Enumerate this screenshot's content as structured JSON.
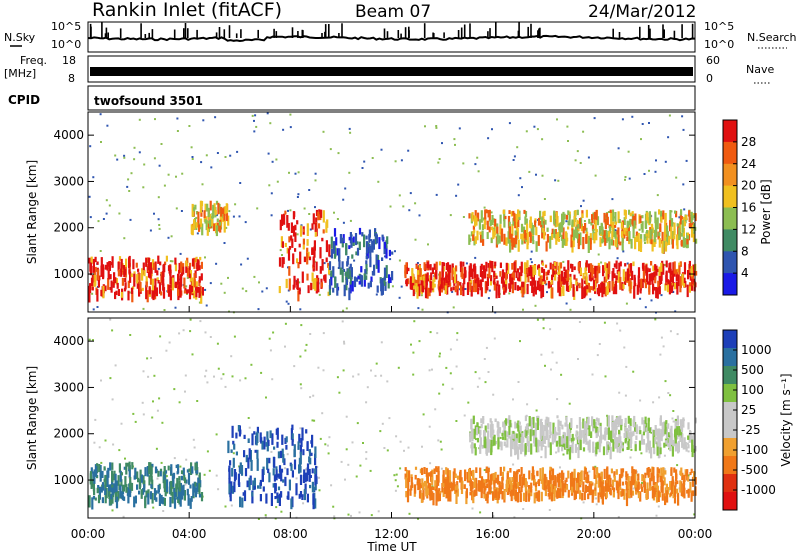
{
  "header": {
    "station": "Rankin Inlet (fitACF)",
    "beam": "Beam 07",
    "date": "24/Mar/2012"
  },
  "noise_panel": {
    "left_label": "N.Sky",
    "right_label": "N.Search",
    "left_ticks": [
      "10^5",
      "10^0"
    ],
    "right_ticks": [
      "10^5",
      "10^0"
    ]
  },
  "freq_panel": {
    "left_label_1": "Freq.",
    "left_label_2": "[MHz]",
    "right_label": "Nave",
    "left_ticks": [
      "18",
      "8"
    ],
    "right_ticks": [
      "60",
      "0"
    ]
  },
  "cpid": {
    "label": "CPID",
    "value": "twofsound 3501"
  },
  "time_axis": {
    "ticks": [
      "00:00",
      "04:00",
      "08:00",
      "12:00",
      "16:00",
      "20:00",
      "00:00"
    ],
    "label": "Time UT"
  },
  "power_panel": {
    "ylabel": "Slant Range [km]",
    "y_ticks": [
      "1000",
      "2000",
      "3000",
      "4000"
    ],
    "colorbar_label": "Power [dB]",
    "colorbar_ticks": [
      "4",
      "8",
      "12",
      "16",
      "20",
      "24",
      "28"
    ],
    "colors": [
      "#1a1ae6",
      "#2f55b0",
      "#3f8a63",
      "#8cbd52",
      "#f0c020",
      "#f29020",
      "#f05a10",
      "#e01010"
    ]
  },
  "velocity_panel": {
    "ylabel": "Slant Range [km]",
    "y_ticks": [
      "1000",
      "2000",
      "3000",
      "4000"
    ],
    "colorbar_label": "Velocity [m s⁻¹]",
    "colorbar_ticks": [
      "1000",
      "500",
      "100",
      "25",
      "-25",
      "-100",
      "-500",
      "-1000"
    ],
    "colors": [
      "#1d3fb8",
      "#2a70a0",
      "#3f8a63",
      "#7fc040",
      "#c8c8c8",
      "#c8c8c8",
      "#f0a030",
      "#f07818",
      "#e03010",
      "#e01010"
    ]
  },
  "chart_data": {
    "type": "heatmap",
    "x_range_hours": [
      0,
      24
    ],
    "y_range_km": [
      180,
      4500
    ],
    "power_regions": [
      {
        "t": [
          0,
          4.5
        ],
        "r": [
          600,
          1400
        ],
        "level": "high"
      },
      {
        "t": [
          4.0,
          5.5
        ],
        "r": [
          2000,
          2600
        ],
        "level": "mid"
      },
      {
        "t": [
          7.5,
          9.5
        ],
        "r": [
          600,
          2400
        ],
        "level": "high"
      },
      {
        "t": [
          9.5,
          12.0
        ],
        "r": [
          700,
          2000
        ],
        "level": "low-mid"
      },
      {
        "t": [
          12.5,
          24.0
        ],
        "r": [
          700,
          1300
        ],
        "level": "high"
      },
      {
        "t": [
          15.0,
          24.0
        ],
        "r": [
          1700,
          2400
        ],
        "level": "mid"
      }
    ],
    "velocity_regions": [
      {
        "t": [
          0,
          4.5
        ],
        "r": [
          600,
          1400
        ],
        "sign": "toward",
        "magnitude": "100-500"
      },
      {
        "t": [
          5.5,
          9.0
        ],
        "r": [
          600,
          2200
        ],
        "sign": "toward",
        "magnitude": ">500"
      },
      {
        "t": [
          12.5,
          24.0
        ],
        "r": [
          700,
          1300
        ],
        "sign": "away",
        "magnitude": "100-500"
      },
      {
        "t": [
          15.0,
          24.0
        ],
        "r": [
          1700,
          2400
        ],
        "sign": "near-zero",
        "magnitude": "<25"
      }
    ]
  }
}
